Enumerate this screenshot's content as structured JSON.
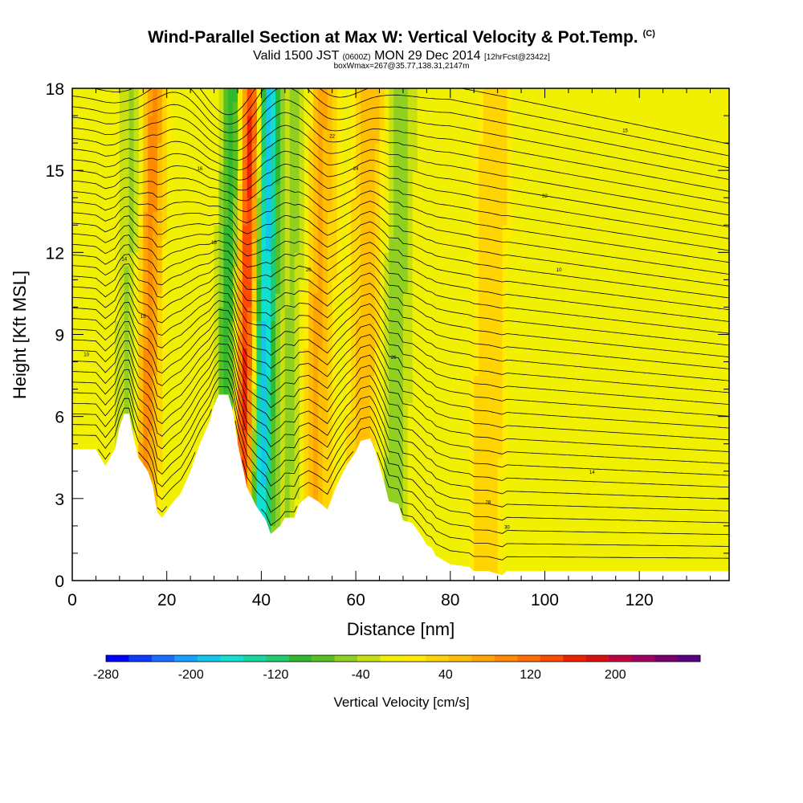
{
  "header": {
    "title": "Wind-Parallel Section at Max W: Vertical Velocity & Pot.Temp.",
    "title_mark": "(C)",
    "valid_a": "Valid 1500 JST",
    "valid_zulu": "(0600Z)",
    "valid_b": "MON 29 Dec 2014",
    "forecast": "[12hrFcst@2342z]",
    "boxline": "boxWmax=267@35.77,138.31,2147m"
  },
  "chart_data": {
    "type": "heatmap",
    "xlabel": "Distance [nm]",
    "ylabel": "Height [Kft MSL]",
    "xlim": [
      0,
      139
    ],
    "ylim": [
      0,
      18
    ],
    "x_ticks": [
      "0",
      "20",
      "40",
      "60",
      "80",
      "100",
      "120"
    ],
    "y_ticks": [
      "0",
      "3",
      "6",
      "9",
      "12",
      "15",
      "18"
    ],
    "colorbar": {
      "label": "Vertical Velocity [cm/s]",
      "ticks": [
        "-280",
        "-200",
        "-120",
        "-40",
        "40",
        "120",
        "200"
      ],
      "range": [
        -280,
        280
      ],
      "colors": [
        "#0000ff",
        "#0d3bff",
        "#1a6eff",
        "#16a0ff",
        "#12c6ee",
        "#10e0d0",
        "#14d8a0",
        "#20cc70",
        "#30b830",
        "#58c020",
        "#90d020",
        "#c8e010",
        "#f0f000",
        "#ffec00",
        "#ffd400",
        "#ffbe00",
        "#ffa400",
        "#ff8a00",
        "#ff6e00",
        "#ff4a00",
        "#f02000",
        "#d81010",
        "#c00040",
        "#a00060",
        "#7a0070",
        "#5a0080"
      ]
    },
    "terrain_kft": [
      [
        0,
        4.8
      ],
      [
        5,
        4.8
      ],
      [
        7,
        4.2
      ],
      [
        9,
        4.8
      ],
      [
        10,
        5.6
      ],
      [
        11,
        6.1
      ],
      [
        12,
        6.1
      ],
      [
        13,
        5.2
      ],
      [
        14,
        4.5
      ],
      [
        16,
        4
      ],
      [
        17,
        3.5
      ],
      [
        18,
        2.5
      ],
      [
        19,
        2.3
      ],
      [
        21,
        2.8
      ],
      [
        23,
        3.2
      ],
      [
        25,
        4
      ],
      [
        27,
        5
      ],
      [
        29,
        5.8
      ],
      [
        30,
        6.4
      ],
      [
        31,
        6.8
      ],
      [
        33,
        6.8
      ],
      [
        34,
        6.2
      ],
      [
        35,
        5
      ],
      [
        36,
        4.2
      ],
      [
        37,
        3.4
      ],
      [
        39,
        2.7
      ],
      [
        41,
        2.2
      ],
      [
        42,
        1.7
      ],
      [
        44,
        2
      ],
      [
        45,
        2.3
      ],
      [
        47,
        2.3
      ],
      [
        48,
        2.8
      ],
      [
        50,
        3.1
      ],
      [
        52,
        2.9
      ],
      [
        54,
        2.6
      ],
      [
        56,
        3.5
      ],
      [
        58,
        4.2
      ],
      [
        60,
        4.7
      ],
      [
        61,
        5.1
      ],
      [
        63,
        5.2
      ],
      [
        64,
        4.8
      ],
      [
        66,
        3.6
      ],
      [
        67,
        2.9
      ],
      [
        69,
        2.8
      ],
      [
        70,
        2.2
      ],
      [
        72,
        2.1
      ],
      [
        74,
        1.6
      ],
      [
        75,
        1.3
      ],
      [
        76,
        1.2
      ],
      [
        77,
        0.9
      ],
      [
        80,
        0.6
      ],
      [
        84,
        0.5
      ],
      [
        85,
        0.35
      ],
      [
        88,
        0.35
      ],
      [
        91,
        0.2
      ],
      [
        92,
        0.35
      ],
      [
        95,
        0.35
      ],
      [
        139,
        0.35
      ]
    ],
    "updraft_bands": [
      {
        "x": 15.5,
        "w_cm_s": 120
      },
      {
        "x": 36.5,
        "w_cm_s": 200
      },
      {
        "x": 51,
        "w_cm_s": 80
      },
      {
        "x": 62,
        "w_cm_s": 60
      },
      {
        "x": 88,
        "w_cm_s": 40
      }
    ],
    "downdraft_bands": [
      {
        "x": 12.5,
        "w_cm_s": -60
      },
      {
        "x": 33,
        "w_cm_s": -120
      },
      {
        "x": 40,
        "w_cm_s": -200
      },
      {
        "x": 47,
        "w_cm_s": -60
      },
      {
        "x": 68,
        "w_cm_s": -60
      }
    ],
    "theta_contour_labels": [
      "10",
      "14",
      "15",
      "16",
      "18",
      "20",
      "22",
      "24",
      "26",
      "28",
      "30",
      "32"
    ]
  }
}
